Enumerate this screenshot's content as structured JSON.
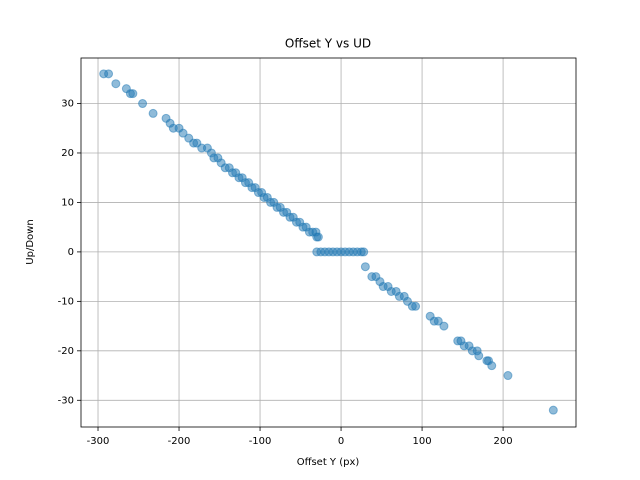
{
  "chart_data": {
    "type": "scatter",
    "title": "Offset Y vs UD",
    "x_label": "Offset Y (px)",
    "y_label": "Up/Down",
    "grid": true,
    "color": "#1f77b4",
    "xlim": [
      -321,
      290
    ],
    "ylim": [
      -35.4,
      39.2
    ],
    "xticks": [
      -300,
      -200,
      -100,
      0,
      100,
      200
    ],
    "yticks": [
      -30,
      -20,
      -10,
      0,
      10,
      20,
      30
    ],
    "x": [
      -293,
      -287,
      -278,
      -265,
      -260,
      -257,
      -245,
      -232,
      -216,
      -211,
      -207,
      -200,
      -195,
      -188,
      -182,
      -178,
      -172,
      -165,
      -160,
      -157,
      -152,
      -148,
      -143,
      -138,
      -134,
      -130,
      -126,
      -122,
      -118,
      -114,
      -110,
      -106,
      -102,
      -98,
      -95,
      -91,
      -87,
      -83,
      -79,
      -75,
      -71,
      -67,
      -63,
      -59,
      -55,
      -51,
      -47,
      -43,
      -39,
      -35,
      -31,
      -30,
      -28,
      -30,
      -25,
      -20,
      -15,
      -10,
      -5,
      0,
      5,
      10,
      15,
      20,
      25,
      28,
      30,
      38,
      43,
      48,
      52,
      58,
      62,
      68,
      72,
      78,
      82,
      88,
      92,
      110,
      115,
      120,
      127,
      144,
      148,
      152,
      158,
      162,
      168,
      170,
      180,
      182,
      186,
      206,
      262
    ],
    "y": [
      36,
      36,
      34,
      33,
      32,
      32,
      30,
      28,
      27,
      26,
      25,
      25,
      24,
      23,
      22,
      22,
      21,
      21,
      20,
      19,
      19,
      18,
      17,
      17,
      16,
      16,
      15,
      15,
      14,
      14,
      13,
      13,
      12,
      12,
      11,
      11,
      10,
      10,
      9,
      9,
      8,
      8,
      7,
      7,
      6,
      6,
      5,
      5,
      4,
      4,
      4,
      3,
      3,
      0,
      0,
      0,
      0,
      0,
      0,
      0,
      0,
      0,
      0,
      0,
      0,
      0,
      -3,
      -5,
      -5,
      -6,
      -7,
      -7,
      -8,
      -8,
      -9,
      -9,
      -10,
      -11,
      -11,
      -13,
      -14,
      -14,
      -15,
      -18,
      -18,
      -19,
      -19,
      -20,
      -20,
      -21,
      -22,
      -22,
      -23,
      -25,
      -32
    ]
  }
}
